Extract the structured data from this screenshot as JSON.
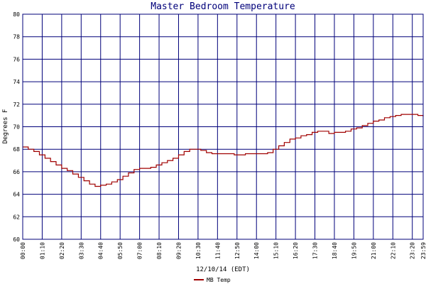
{
  "chart_data": {
    "type": "line",
    "title": "Master Bedroom Temperature",
    "xlabel": "12/10/14 (EDT)",
    "ylabel": "Degrees F",
    "ylim": [
      60,
      80
    ],
    "yticks": [
      "60",
      "62",
      "64",
      "66",
      "68",
      "70",
      "72",
      "74",
      "76",
      "78",
      "80"
    ],
    "xlim": [
      "00:00",
      "23:59"
    ],
    "xticks": [
      "00:00",
      "01:10",
      "02:20",
      "03:30",
      "04:40",
      "05:50",
      "07:00",
      "08:10",
      "09:20",
      "10:30",
      "11:40",
      "12:50",
      "14:00",
      "15:10",
      "16:20",
      "17:30",
      "18:40",
      "19:50",
      "21:00",
      "22:10",
      "23:20",
      "23:59"
    ],
    "grid": true,
    "legend": "bottom",
    "colors": {
      "line": "#a00000",
      "grid": "#00007a",
      "title": "#00007a"
    },
    "series": [
      {
        "name": "MB Temp",
        "x": [
          "00:00",
          "00:20",
          "00:40",
          "01:00",
          "01:20",
          "01:40",
          "02:00",
          "02:20",
          "02:40",
          "03:00",
          "03:20",
          "03:40",
          "04:00",
          "04:20",
          "04:40",
          "05:00",
          "05:20",
          "05:40",
          "06:00",
          "06:20",
          "06:40",
          "07:00",
          "07:20",
          "07:40",
          "08:00",
          "08:20",
          "08:40",
          "09:00",
          "09:20",
          "09:40",
          "10:00",
          "10:20",
          "10:40",
          "11:00",
          "11:20",
          "11:40",
          "12:00",
          "12:20",
          "12:40",
          "13:00",
          "13:20",
          "13:40",
          "14:00",
          "14:20",
          "14:40",
          "15:00",
          "15:20",
          "15:40",
          "16:00",
          "16:20",
          "16:40",
          "17:00",
          "17:20",
          "17:40",
          "18:00",
          "18:20",
          "18:40",
          "19:00",
          "19:20",
          "19:40",
          "20:00",
          "20:20",
          "20:40",
          "21:00",
          "21:20",
          "21:40",
          "22:00",
          "22:20",
          "22:40",
          "23:00",
          "23:20",
          "23:40",
          "23:59"
        ],
        "values": [
          68.2,
          68.0,
          67.8,
          67.5,
          67.2,
          66.9,
          66.6,
          66.3,
          66.1,
          65.8,
          65.5,
          65.2,
          64.9,
          64.7,
          64.8,
          64.9,
          65.1,
          65.3,
          65.6,
          65.9,
          66.2,
          66.3,
          66.3,
          66.4,
          66.6,
          66.8,
          67.0,
          67.2,
          67.5,
          67.8,
          68.0,
          68.0,
          67.9,
          67.7,
          67.6,
          67.6,
          67.6,
          67.6,
          67.5,
          67.5,
          67.6,
          67.6,
          67.6,
          67.6,
          67.7,
          68.0,
          68.3,
          68.6,
          68.9,
          69.0,
          69.2,
          69.3,
          69.5,
          69.6,
          69.6,
          69.4,
          69.5,
          69.5,
          69.6,
          69.8,
          69.9,
          70.1,
          70.3,
          70.5,
          70.6,
          70.8,
          70.9,
          71.0,
          71.1,
          71.1,
          71.1,
          71.0,
          70.9
        ]
      }
    ]
  }
}
